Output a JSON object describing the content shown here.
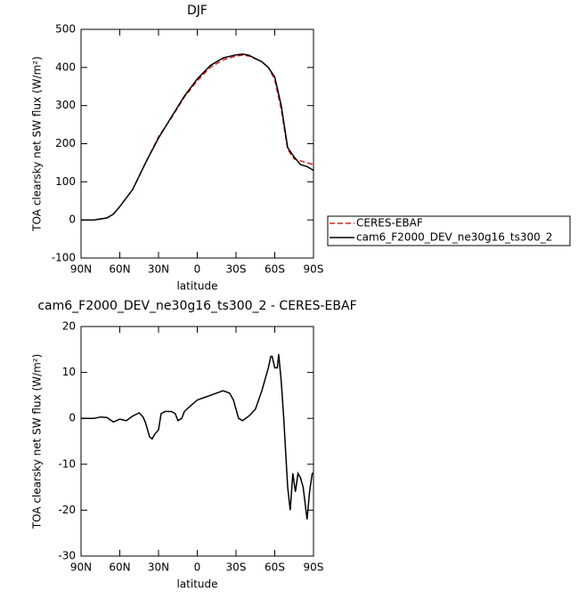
{
  "chart_data": [
    {
      "type": "line",
      "title": "DJF",
      "xlabel": "latitude",
      "ylabel": "TOA clearsky net SW flux (W/m²)",
      "x": [
        90,
        80,
        70,
        65,
        60,
        50,
        40,
        30,
        20,
        10,
        0,
        -10,
        -20,
        -30,
        -35,
        -40,
        -50,
        -55,
        -60,
        -65,
        -70,
        -75,
        -80,
        -85,
        -90
      ],
      "series": [
        {
          "name": "CERES-EBAF",
          "color": "#d62020",
          "dash": true,
          "values": [
            0,
            0,
            5,
            15,
            35,
            80,
            150,
            218,
            268,
            322,
            365,
            400,
            420,
            430,
            432,
            430,
            415,
            400,
            368,
            290,
            185,
            160,
            155,
            150,
            145
          ]
        },
        {
          "name": "cam6_F2000_DEV_ne30g16_ts300_2",
          "color": "#000000",
          "dash": false,
          "values": [
            0,
            0,
            5,
            15,
            35,
            80,
            150,
            215,
            270,
            325,
            370,
            405,
            425,
            433,
            435,
            432,
            415,
            400,
            375,
            300,
            190,
            165,
            145,
            140,
            130
          ]
        }
      ],
      "xlim": [
        90,
        -90
      ],
      "xticks": [
        {
          "value": 90,
          "label": "90N"
        },
        {
          "value": 60,
          "label": "60N"
        },
        {
          "value": 30,
          "label": "30N"
        },
        0,
        {
          "value": -30,
          "label": "30S"
        },
        {
          "value": -60,
          "label": "60S"
        },
        {
          "value": -90,
          "label": "90S"
        }
      ],
      "ylim": [
        -100,
        500
      ],
      "yticks": [
        -100,
        0,
        100,
        200,
        300,
        400,
        500
      ],
      "legend": "right"
    },
    {
      "type": "line",
      "title": "cam6_F2000_DEV_ne30g16_ts300_2 - CERES-EBAF",
      "xlabel": "latitude",
      "ylabel": "TOA clearsky net SW flux (W/m²)",
      "x": [
        90,
        80,
        75,
        70,
        65,
        60,
        55,
        50,
        45,
        42,
        40,
        37,
        35,
        33,
        30,
        28,
        25,
        20,
        17,
        15,
        12,
        10,
        5,
        0,
        -5,
        -10,
        -15,
        -20,
        -25,
        -28,
        -30,
        -32,
        -35,
        -40,
        -45,
        -50,
        -55,
        -57,
        -58,
        -60,
        -62,
        -63,
        -65,
        -67,
        -70,
        -72,
        -74,
        -76,
        -78,
        -80,
        -82,
        -85,
        -87,
        -89,
        -90
      ],
      "series": [
        {
          "color": "#000000",
          "dash": false,
          "values": [
            0,
            0,
            0.3,
            0.2,
            -0.8,
            -0.2,
            -0.5,
            0.5,
            1.2,
            0.3,
            -1,
            -4,
            -4.5,
            -3.5,
            -2.5,
            1,
            1.5,
            1.5,
            1,
            -0.5,
            0,
            1.5,
            2.8,
            4,
            4.5,
            5,
            5.5,
            6,
            5.5,
            4,
            2,
            0,
            -0.5,
            0.5,
            2,
            6,
            11,
            13.5,
            13.5,
            11,
            11,
            14,
            8,
            0,
            -15,
            -20,
            -12,
            -16,
            -12,
            -13,
            -15,
            -22,
            -16,
            -12,
            -12
          ]
        }
      ],
      "xlim": [
        90,
        -90
      ],
      "xticks": [
        {
          "value": 90,
          "label": "90N"
        },
        {
          "value": 60,
          "label": "60N"
        },
        {
          "value": 30,
          "label": "30N"
        },
        0,
        {
          "value": -30,
          "label": "30S"
        },
        {
          "value": -60,
          "label": "60S"
        },
        {
          "value": -90,
          "label": "90S"
        }
      ],
      "ylim": [
        -30,
        20
      ],
      "yticks": [
        -30,
        -20,
        -10,
        0,
        10,
        20
      ]
    }
  ]
}
